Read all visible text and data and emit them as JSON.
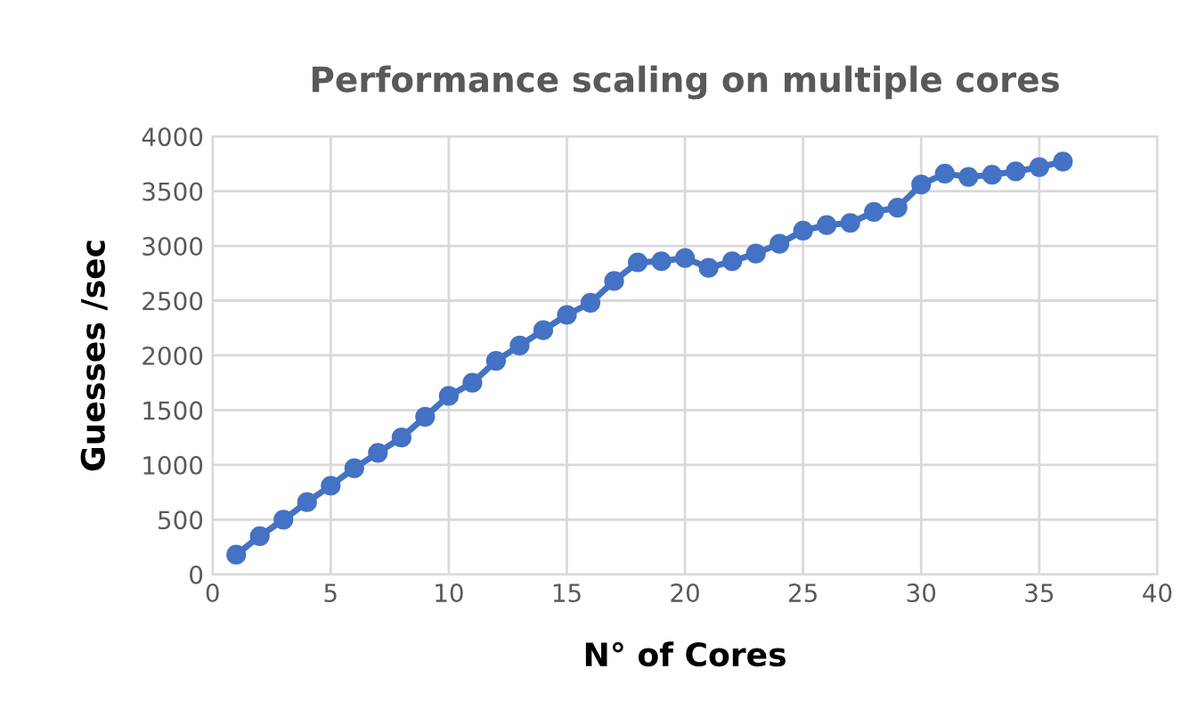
{
  "chart_data": {
    "type": "line",
    "title": "Performance scaling on multiple cores",
    "xlabel": "N° of Cores",
    "ylabel": "Guesses /sec",
    "x": [
      1,
      2,
      3,
      4,
      5,
      6,
      7,
      8,
      9,
      10,
      11,
      12,
      13,
      14,
      15,
      16,
      17,
      18,
      19,
      20,
      21,
      22,
      23,
      24,
      25,
      26,
      27,
      28,
      29,
      30,
      31,
      32,
      33,
      34,
      35,
      36
    ],
    "series": [
      {
        "color": "#4472c4",
        "values": [
          180,
          350,
          500,
          660,
          810,
          970,
          1110,
          1250,
          1440,
          1630,
          1750,
          1950,
          2090,
          2230,
          2370,
          2480,
          2680,
          2850,
          2860,
          2890,
          2800,
          2860,
          2930,
          3020,
          3140,
          3190,
          3210,
          3310,
          3350,
          3560,
          3660,
          3630,
          3650,
          3680,
          3720,
          3770
        ]
      }
    ],
    "xlim": [
      0,
      40
    ],
    "xticks": [
      0,
      5,
      10,
      15,
      20,
      25,
      30,
      35,
      40
    ],
    "ylim": [
      0,
      4000
    ],
    "yticks": [
      0,
      500,
      1000,
      1500,
      2000,
      2500,
      3000,
      3500,
      4000
    ],
    "grid": true,
    "marker": "circle",
    "line_style": "solid"
  }
}
